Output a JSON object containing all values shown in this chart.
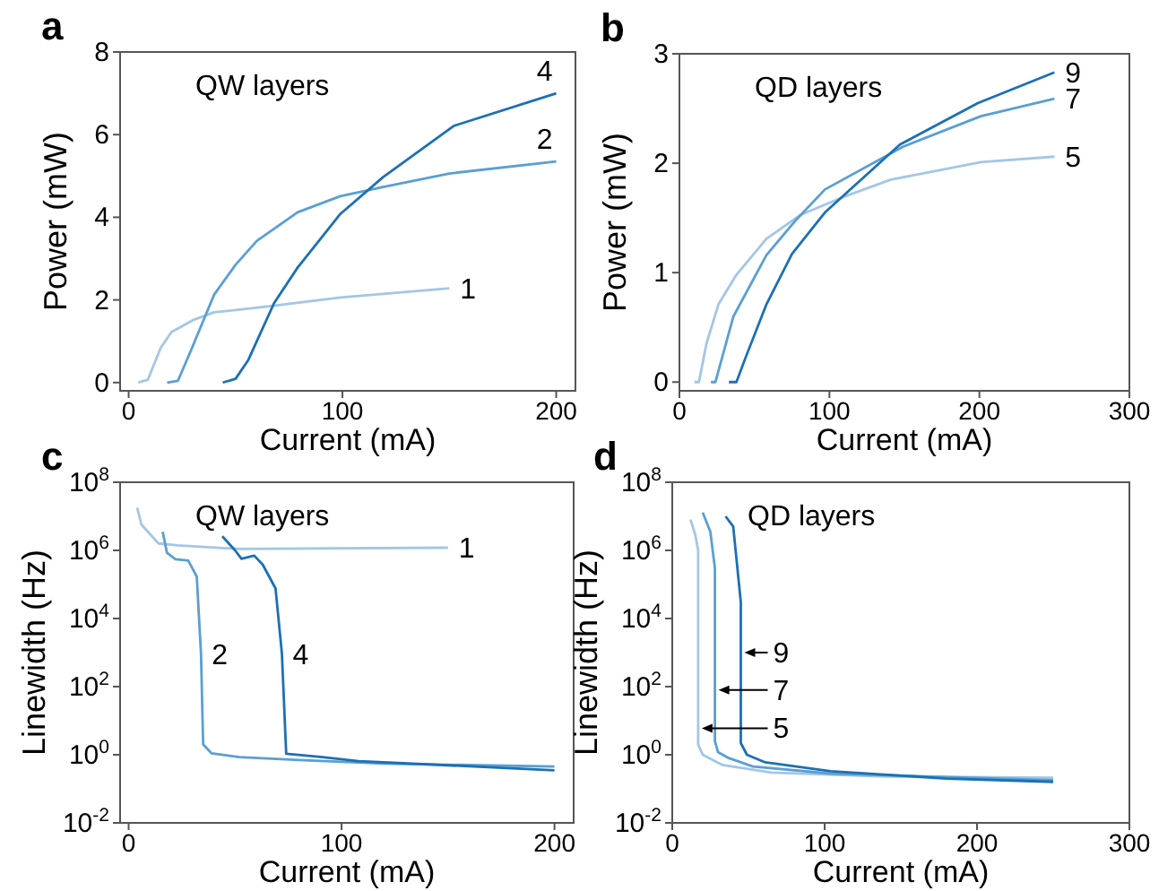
{
  "chart_data": [
    {
      "type": "line",
      "title": "a",
      "xlabel": "Current (mA)",
      "ylabel": "Power (mW)",
      "xlim": [
        -4,
        209
      ],
      "ylim": [
        -0.2,
        8
      ],
      "xticks": [
        0,
        100,
        200
      ],
      "yticks": [
        0,
        2,
        4,
        6,
        8
      ],
      "annotations": [
        "QW layers",
        {
          "text": "4",
          "x": 200,
          "y": 7.0
        },
        {
          "text": "2",
          "x": 200,
          "y": 5.35
        },
        {
          "text": "1",
          "x": 150,
          "y": 2.28
        }
      ],
      "series": [
        {
          "color": "#a3c6e6",
          "x": [
            4.5,
            9,
            15,
            20,
            30,
            40,
            65,
            99,
            150
          ],
          "values": [
            0,
            0.07,
            0.84,
            1.22,
            1.51,
            1.7,
            1.84,
            2.06,
            2.28
          ]
        },
        {
          "color": "#5a9fd4",
          "x": [
            18,
            23,
            29,
            40,
            50,
            60,
            79,
            99,
            119,
            150,
            200
          ],
          "values": [
            0,
            0.04,
            0.76,
            2.13,
            2.85,
            3.43,
            4.12,
            4.51,
            4.73,
            5.06,
            5.35
          ]
        },
        {
          "color": "#1b70b5",
          "x": [
            44,
            50,
            56,
            68,
            79,
            99,
            119,
            152,
            200
          ],
          "values": [
            0,
            0.09,
            0.55,
            1.92,
            2.78,
            4.08,
            4.97,
            6.21,
            7.0
          ]
        }
      ]
    },
    {
      "type": "line",
      "title": "b",
      "xlabel": "Current (mA)",
      "ylabel": "Power (mW)",
      "xlim": [
        0,
        300
      ],
      "ylim": [
        -0.08,
        3
      ],
      "xticks": [
        0,
        100,
        200,
        300
      ],
      "yticks": [
        0,
        1,
        2,
        3
      ],
      "annotations": [
        "QD layers",
        {
          "text": "9",
          "x": 250,
          "y": 2.83
        },
        {
          "text": "7",
          "x": 250,
          "y": 2.59
        },
        {
          "text": "5",
          "x": 250,
          "y": 2.06
        }
      ],
      "series": [
        {
          "color": "#a3c6e6",
          "x": [
            10,
            13,
            18,
            26,
            38,
            58,
            81,
            109,
            141,
            201,
            250
          ],
          "values": [
            0,
            0,
            0.35,
            0.71,
            0.98,
            1.31,
            1.53,
            1.69,
            1.85,
            2.01,
            2.06
          ]
        },
        {
          "color": "#5a9fd4",
          "x": [
            21,
            24,
            36,
            58,
            77,
            97,
            149,
            201,
            250
          ],
          "values": [
            0,
            0,
            0.6,
            1.16,
            1.47,
            1.76,
            2.15,
            2.43,
            2.59
          ]
        },
        {
          "color": "#1b70b5",
          "x": [
            33,
            38,
            44,
            58,
            75,
            97,
            147,
            199,
            250
          ],
          "values": [
            0,
            0,
            0.22,
            0.71,
            1.17,
            1.55,
            2.17,
            2.55,
            2.83
          ]
        }
      ]
    },
    {
      "type": "line",
      "title": "c",
      "xlabel": "Current (mA)",
      "ylabel": "Linewidth (Hz)",
      "log": "y",
      "xlim": [
        -4,
        209
      ],
      "ylim": [
        0.01,
        100000000
      ],
      "xticks": [
        0,
        100,
        200
      ],
      "yticks": [
        {
          "value": 0.01,
          "label": "10$^{-2}$"
        },
        {
          "value": 1,
          "label": "10$^{0}$"
        },
        {
          "value": 100,
          "label": "10$^{2}$"
        },
        {
          "value": 10000,
          "label": "10$^{4}$"
        },
        {
          "value": 1000000,
          "label": "10$^{6}$"
        },
        {
          "value": 100000000,
          "label": "10$^{8}$"
        }
      ],
      "annotations": [
        "QW layers",
        {
          "text": "1",
          "x": 150,
          "y": 1200000
        },
        {
          "text": "2",
          "x": 34,
          "y": 900
        },
        {
          "text": "4",
          "x": 72,
          "y": 900
        }
      ],
      "series": [
        {
          "color": "#a3c6e6",
          "x": [
            4,
            6,
            14,
            23,
            52,
            150
          ],
          "values": [
            18000000,
            5700000,
            1600000,
            1400000,
            1100000,
            1200000
          ]
        },
        {
          "color": "#5a9fd4",
          "x": [
            16,
            18,
            22,
            28,
            32,
            34,
            35,
            39,
            52,
            80,
            120,
            200
          ],
          "values": [
            3500000,
            850000,
            550000,
            500000,
            170000,
            900,
            2,
            1.1,
            0.85,
            0.7,
            0.55,
            0.45
          ]
        },
        {
          "color": "#1b70b5",
          "x": [
            44,
            50,
            53,
            59,
            63,
            69,
            72,
            74,
            91,
            108,
            200
          ],
          "values": [
            2600000,
            1000000,
            570000,
            700000,
            380000,
            76000,
            900,
            1.07,
            0.85,
            0.65,
            0.35
          ]
        }
      ]
    },
    {
      "type": "line",
      "title": "d",
      "xlabel": "Current (mA)",
      "ylabel": "Linewidth (Hz)",
      "log": "y",
      "xlim": [
        0,
        300
      ],
      "ylim": [
        0.01,
        100000000
      ],
      "xticks": [
        0,
        100,
        200,
        300
      ],
      "yticks": [
        {
          "value": 0.01,
          "label": "10$^{-2}$"
        },
        {
          "value": 1,
          "label": "10$^{0}$"
        },
        {
          "value": 100,
          "label": "10$^{2}$"
        },
        {
          "value": 10000,
          "label": "10$^{4}$"
        },
        {
          "value": 1000000,
          "label": "10$^{6}$"
        },
        {
          "value": 100000000,
          "label": "10$^{8}$"
        }
      ],
      "annotations": [
        "QD layers",
        {
          "text": "9",
          "x": 45,
          "y": 1000
        },
        {
          "text": "7",
          "x": 28,
          "y": 80
        },
        {
          "text": "5",
          "x": 17,
          "y": 6
        }
      ],
      "series": [
        {
          "color": "#a3c6e6",
          "x": [
            12,
            15,
            17,
            17,
            20,
            33,
            65,
            140,
            250
          ],
          "values": [
            8000000,
            3000000,
            1000000,
            2,
            1,
            0.5,
            0.3,
            0.23,
            0.21
          ]
        },
        {
          "color": "#5a9fd4",
          "x": [
            20,
            25,
            28,
            28,
            30,
            37,
            53,
            104,
            250
          ],
          "values": [
            13000000,
            3500000,
            300000,
            2.5,
            1.2,
            0.8,
            0.45,
            0.28,
            0.18
          ]
        },
        {
          "color": "#1b70b5",
          "x": [
            35,
            40,
            45,
            45,
            49,
            61,
            104,
            180,
            250
          ],
          "values": [
            10000000,
            5000000,
            30000,
            2.2,
            1,
            0.6,
            0.33,
            0.2,
            0.16
          ]
        }
      ]
    }
  ]
}
